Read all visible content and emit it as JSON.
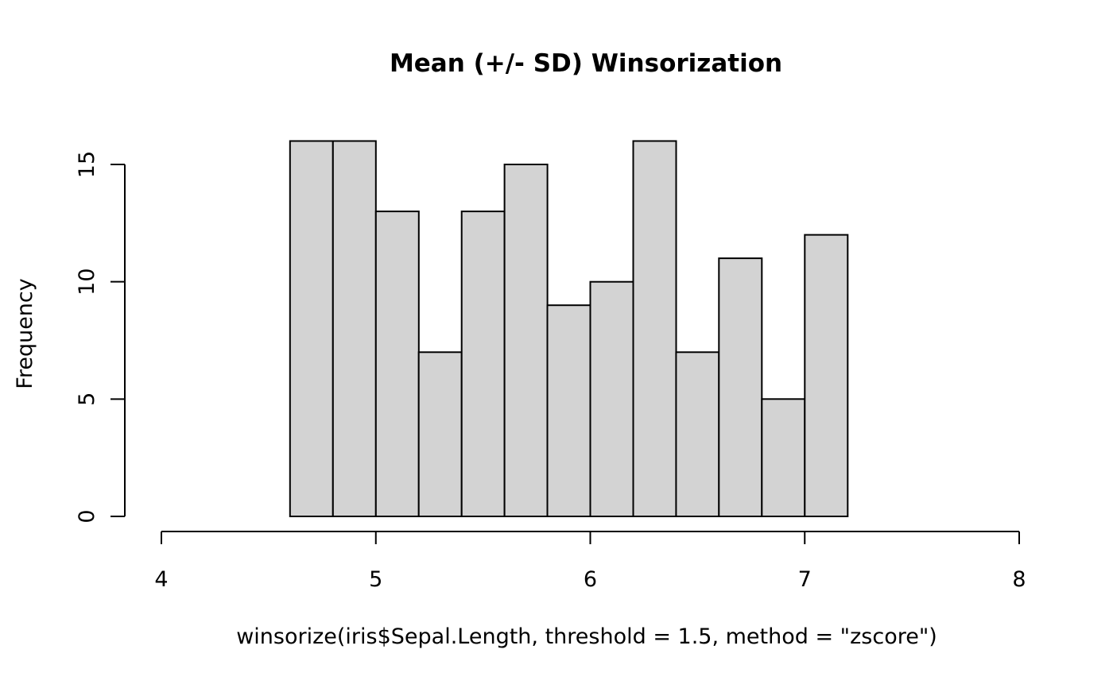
{
  "chart_data": {
    "type": "bar",
    "subtype": "histogram",
    "title": "Mean (+/- SD) Winsorization",
    "xlabel": "winsorize(iris$Sepal.Length, threshold = 1.5, method = \"zscore\")",
    "ylabel": "Frequency",
    "bin_edges": [
      4.6,
      4.8,
      5.0,
      5.2,
      5.4,
      5.6,
      5.8,
      6.0,
      6.2,
      6.4,
      6.6,
      6.8,
      7.0,
      7.2
    ],
    "categories": [
      "4.6-4.8",
      "4.8-5.0",
      "5.0-5.2",
      "5.2-5.4",
      "5.4-5.6",
      "5.6-5.8",
      "5.8-6.0",
      "6.0-6.2",
      "6.2-6.4",
      "6.4-6.6",
      "6.6-6.8",
      "6.8-7.0",
      "7.0-7.2"
    ],
    "values": [
      16,
      16,
      13,
      7,
      13,
      15,
      9,
      10,
      16,
      7,
      11,
      5,
      12
    ],
    "total_count": 150,
    "xlim": [
      4,
      8
    ],
    "ylim": [
      0,
      15
    ],
    "xticks": [
      4,
      5,
      6,
      7,
      8
    ],
    "yticks": [
      0,
      5,
      10,
      15
    ],
    "grid": "off",
    "legend": "none",
    "bar_fill": "#d3d3d3",
    "bar_stroke": "#000000",
    "axis_color": "#000000",
    "background": "#ffffff"
  }
}
